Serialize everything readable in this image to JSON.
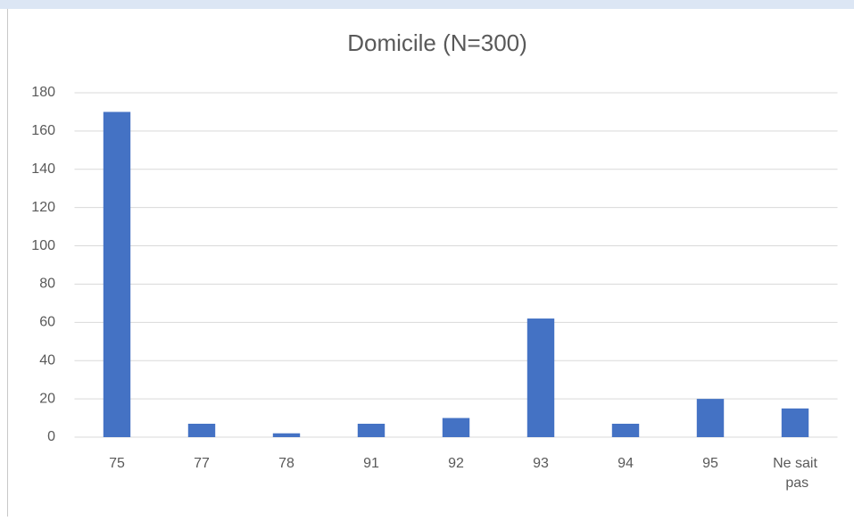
{
  "chart_data": {
    "type": "bar",
    "title": "Domicile (N=300)",
    "categories": [
      "75",
      "77",
      "78",
      "91",
      "92",
      "93",
      "94",
      "95",
      "Ne sait pas"
    ],
    "values": [
      170,
      7,
      2,
      7,
      10,
      62,
      7,
      20,
      15
    ],
    "color": "#4472c4",
    "ylim": [
      0,
      180
    ],
    "yticks": [
      0,
      20,
      40,
      60,
      80,
      100,
      120,
      140,
      160,
      180
    ],
    "grid": true
  }
}
